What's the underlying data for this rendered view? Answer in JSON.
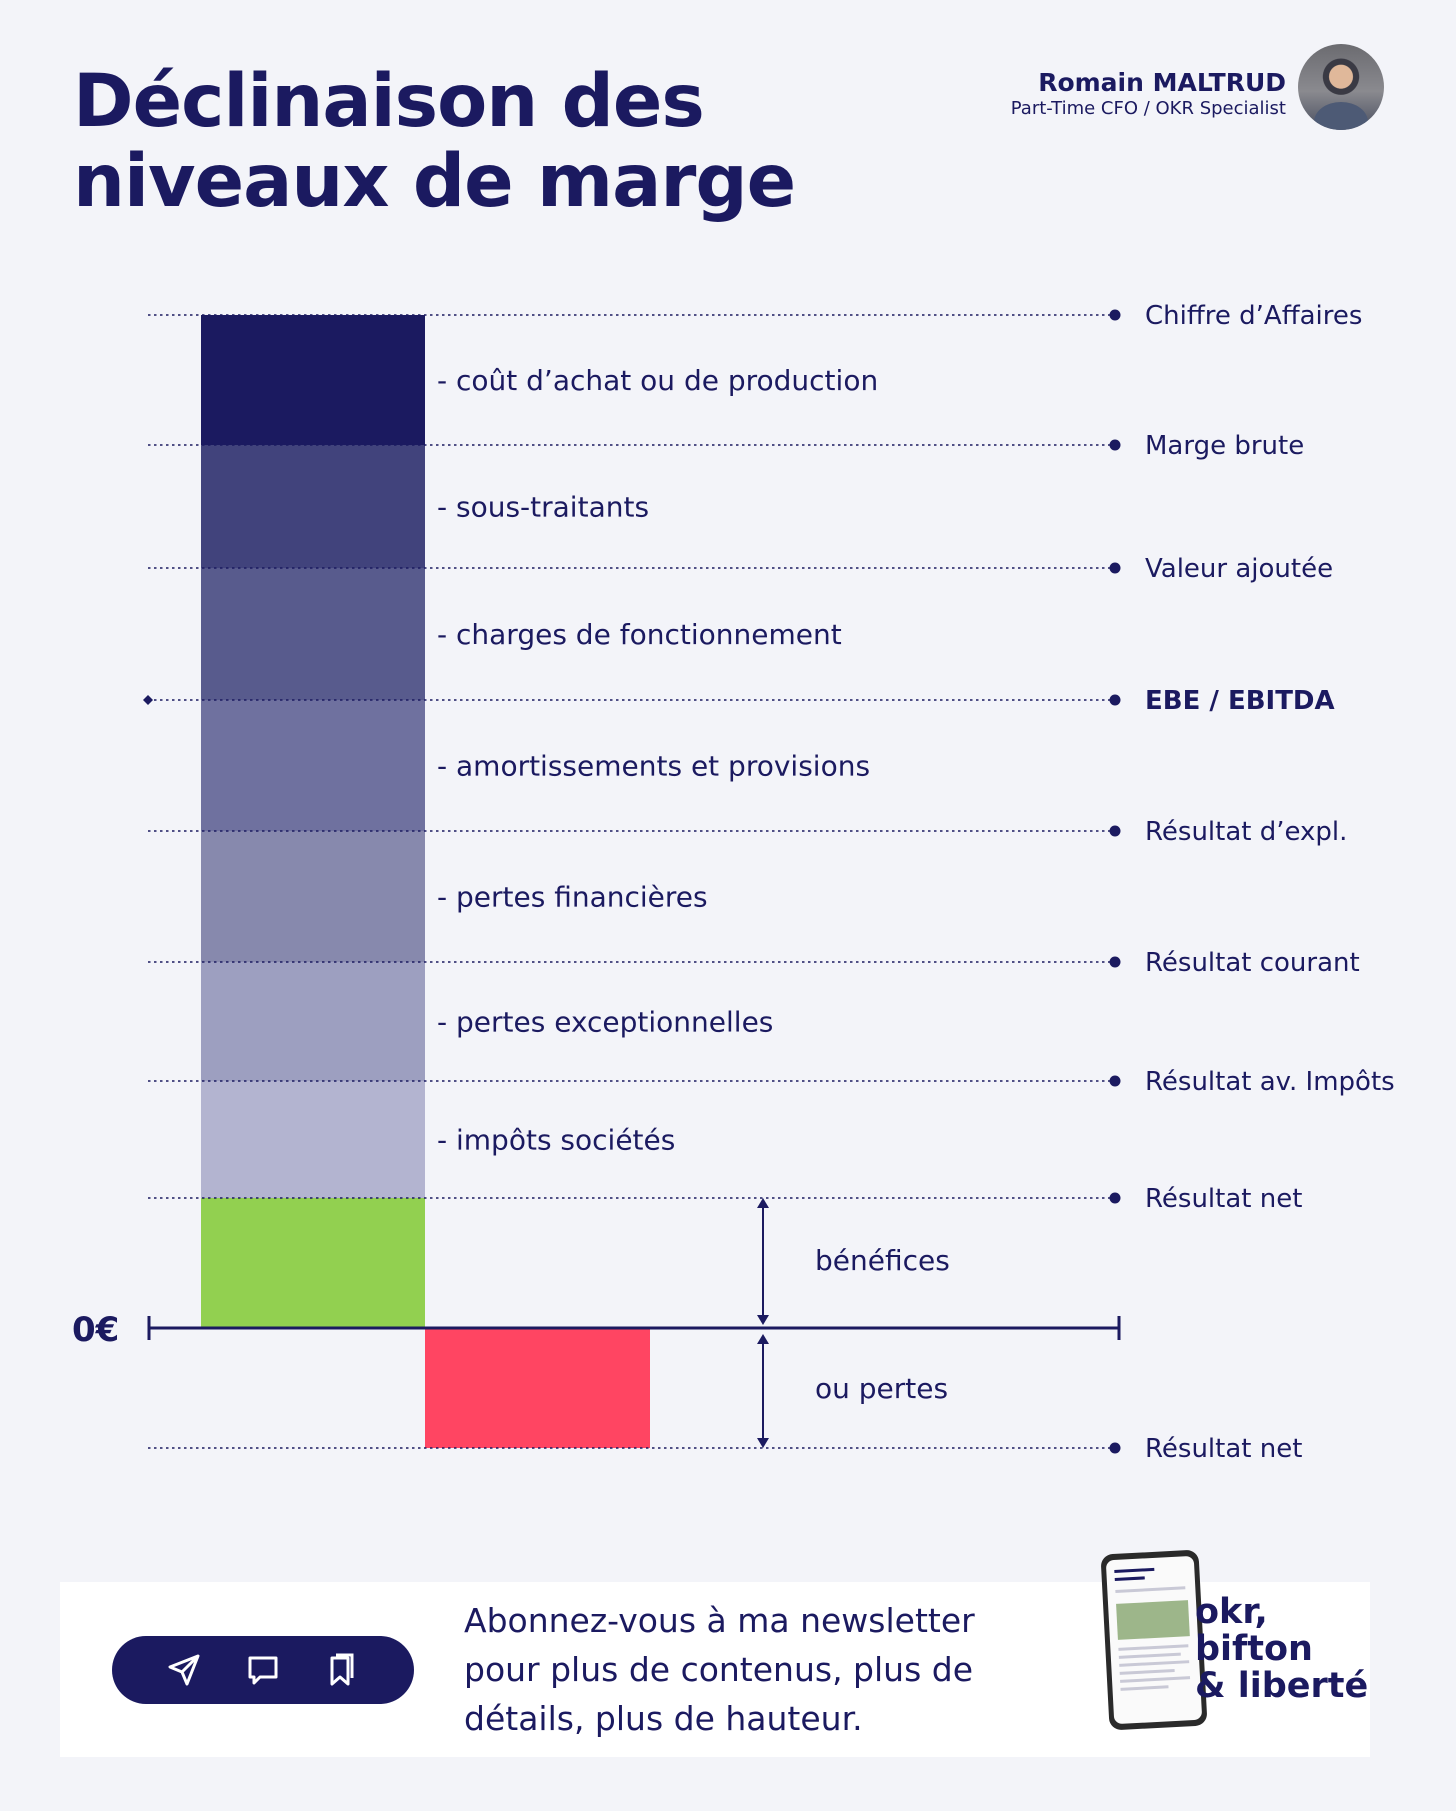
{
  "title": {
    "line1": "Déclinaison des",
    "line2": "niveaux de marge"
  },
  "author": {
    "name": "Romain MALTRUD",
    "role": "Part-Time CFO / OKR Specialist"
  },
  "diagram": {
    "levels": [
      {
        "label": "Chiffre d’Affaires",
        "bold": false
      },
      {
        "label": "Marge brute",
        "bold": false
      },
      {
        "label": "Valeur ajoutée",
        "bold": false
      },
      {
        "label": "EBE / EBITDA",
        "bold": true
      },
      {
        "label": "Résultat d’expl.",
        "bold": false
      },
      {
        "label": "Résultat courant",
        "bold": false
      },
      {
        "label": "Résultat av. Impôts",
        "bold": false
      },
      {
        "label": "Résultat net",
        "bold": false
      },
      {
        "label": "Résultat net",
        "bold": false
      }
    ],
    "costs": [
      {
        "label": "- coût d’achat ou de production",
        "color": "#1b1a60"
      },
      {
        "label": "- sous-traitants",
        "color": "#41437c"
      },
      {
        "label": "- charges de fonctionnement",
        "color": "#585b8d"
      },
      {
        "label": "- amortissements et provisions",
        "color": "#6f719f"
      },
      {
        "label": "- pertes financières",
        "color": "#8789ad"
      },
      {
        "label": "- pertes exceptionnelles",
        "color": "#9d9fc0"
      },
      {
        "label": "- impôts sociétés",
        "color": "#b3b4d0"
      }
    ],
    "profit": {
      "label": "bénéfices",
      "color": "#92d050"
    },
    "loss": {
      "label": "ou pertes",
      "color": "#ff4562"
    },
    "zero_label": "0€"
  },
  "footer": {
    "newsletter": [
      "Abonnez-vous à ma newsletter",
      "pour plus de contenus, plus de",
      "détails, plus de hauteur."
    ],
    "brand": [
      "okr,",
      "bifton",
      "& liberté"
    ],
    "icons": [
      "send-icon",
      "comment-icon",
      "bookmark-icon"
    ]
  }
}
